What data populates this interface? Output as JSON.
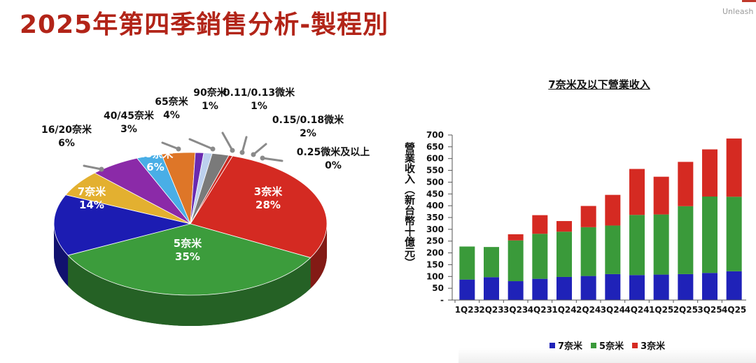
{
  "page": {
    "title": "2025年第四季銷售分析-製程別",
    "brand": "Unleash In"
  },
  "colors": {
    "title": "#b22418",
    "n7": "#1f22b8",
    "n5": "#3a9a3a",
    "n3": "#d52a22"
  },
  "chart_data": [
    {
      "type": "pie",
      "title": "",
      "slices": [
        {
          "label": "3奈米",
          "value": 28,
          "pct": "28%",
          "color": "#d42a22"
        },
        {
          "label": "5奈米",
          "value": 35,
          "pct": "35%",
          "color": "#3c9c3c"
        },
        {
          "label": "7奈米",
          "value": 14,
          "pct": "14%",
          "color": "#1c1cb2"
        },
        {
          "label": "16/20奈米",
          "value": 6,
          "pct": "6%",
          "color": "#e3b030"
        },
        {
          "label": "28奈米",
          "value": 6,
          "pct": "6%",
          "color": "#8b2aa8"
        },
        {
          "label": "40/45奈米",
          "value": 3,
          "pct": "3%",
          "color": "#49aee6"
        },
        {
          "label": "65奈米",
          "value": 4,
          "pct": "4%",
          "color": "#de7628"
        },
        {
          "label": "90奈米",
          "value": 1,
          "pct": "1%",
          "color": "#6a2ab0"
        },
        {
          "label": "0.11/0.13微米",
          "value": 1,
          "pct": "1%",
          "color": "#bcd0ee"
        },
        {
          "label": "0.15/0.18微米",
          "value": 2,
          "pct": "2%",
          "color": "#7a7a7a"
        },
        {
          "label": "0.25微米及以上",
          "value": 0,
          "pct": "0%",
          "color": "#c82a22"
        }
      ]
    },
    {
      "type": "bar",
      "stacked": true,
      "title": "7奈米及以下營業收入",
      "ylabel": "營業收入（新台幣十億元）",
      "ylim": [
        0,
        700
      ],
      "yticks": [
        "-",
        "50",
        "100",
        "150",
        "200",
        "250",
        "300",
        "350",
        "400",
        "450",
        "500",
        "550",
        "600",
        "650",
        "700"
      ],
      "categories": [
        "1Q23",
        "2Q23",
        "3Q23",
        "4Q23",
        "1Q24",
        "2Q24",
        "3Q24",
        "4Q24",
        "1Q25",
        "2Q25",
        "3Q25",
        "4Q25"
      ],
      "series": [
        {
          "name": "7奈米",
          "color": "#1f22b8",
          "values": [
            87,
            97,
            80,
            90,
            98,
            102,
            110,
            106,
            108,
            110,
            115,
            122
          ]
        },
        {
          "name": "5奈米",
          "color": "#3a9a3a",
          "values": [
            140,
            128,
            173,
            191,
            192,
            207,
            206,
            255,
            255,
            288,
            324,
            316
          ]
        },
        {
          "name": "3奈米",
          "color": "#d52a22",
          "values": [
            0,
            0,
            26,
            79,
            45,
            90,
            130,
            195,
            160,
            188,
            200,
            247
          ]
        }
      ]
    }
  ]
}
